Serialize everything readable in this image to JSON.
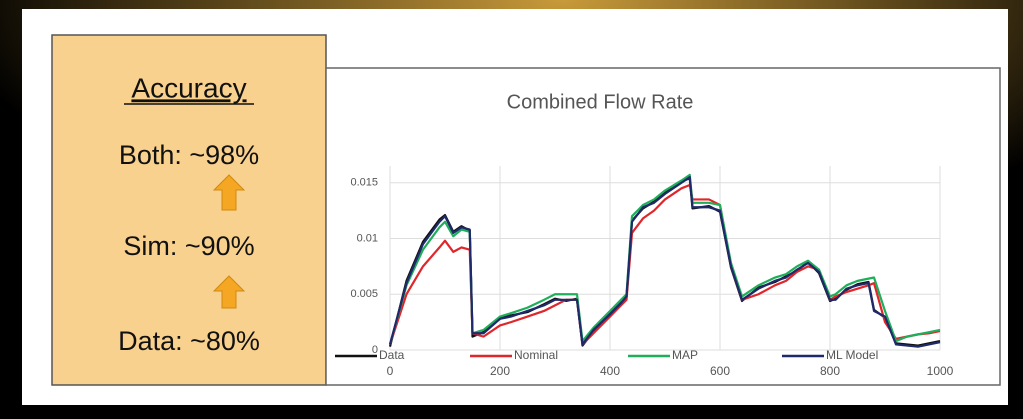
{
  "panel": {
    "heading": "Accuracy",
    "lines": [
      "Both: ~98%",
      "Sim: ~90%",
      "Data: ~80%"
    ]
  },
  "chart_data": {
    "type": "line",
    "title": "Combined Flow Rate",
    "x": [
      0,
      30,
      60,
      90,
      100,
      115,
      130,
      145,
      150,
      170,
      200,
      220,
      250,
      280,
      300,
      320,
      340,
      350,
      370,
      400,
      420,
      430,
      440,
      460,
      480,
      500,
      530,
      545,
      550,
      580,
      600,
      620,
      640,
      670,
      700,
      720,
      740,
      760,
      780,
      800,
      810,
      830,
      850,
      870,
      880,
      900,
      920,
      940,
      960,
      980,
      1000
    ],
    "series": [
      {
        "name": "Data",
        "color": "#111111",
        "values": [
          0.0003,
          0.0062,
          0.0097,
          0.0117,
          0.0121,
          0.0106,
          0.0111,
          0.0107,
          0.0012,
          0.0016,
          0.0029,
          0.0031,
          0.0034,
          0.0041,
          0.0046,
          0.0044,
          0.0046,
          0.0004,
          0.0017,
          0.0033,
          0.0043,
          0.0047,
          0.0116,
          0.0127,
          0.0133,
          0.0141,
          0.0151,
          0.0154,
          0.0127,
          0.0129,
          0.0124,
          0.0074,
          0.0044,
          0.0056,
          0.0061,
          0.0066,
          0.0071,
          0.0079,
          0.0069,
          0.0044,
          0.0046,
          0.0054,
          0.0059,
          0.0061,
          0.0036,
          0.0029,
          0.0006,
          0.0005,
          0.0004,
          0.0006,
          0.0008
        ]
      },
      {
        "name": "Nominal",
        "color": "#e0262b",
        "values": [
          0.0005,
          0.005,
          0.0075,
          0.0092,
          0.0098,
          0.0088,
          0.0092,
          0.009,
          0.0015,
          0.0012,
          0.0022,
          0.0025,
          0.003,
          0.0035,
          0.004,
          0.0045,
          0.0045,
          0.0005,
          0.0015,
          0.003,
          0.004,
          0.0045,
          0.0105,
          0.0118,
          0.0125,
          0.0135,
          0.0145,
          0.0148,
          0.0135,
          0.0135,
          0.013,
          0.0075,
          0.0045,
          0.005,
          0.0058,
          0.0062,
          0.007,
          0.0075,
          0.0072,
          0.0045,
          0.0048,
          0.0052,
          0.0055,
          0.0058,
          0.006,
          0.0025,
          0.001,
          0.0012,
          0.0014,
          0.0015,
          0.0017
        ]
      },
      {
        "name": "MAP",
        "color": "#1fae5a",
        "values": [
          0.0005,
          0.0058,
          0.009,
          0.011,
          0.0115,
          0.0102,
          0.0108,
          0.0106,
          0.0015,
          0.0018,
          0.003,
          0.0033,
          0.0038,
          0.0045,
          0.005,
          0.005,
          0.005,
          0.0008,
          0.002,
          0.0035,
          0.0045,
          0.005,
          0.012,
          0.013,
          0.0135,
          0.0143,
          0.0152,
          0.0157,
          0.0132,
          0.0132,
          0.013,
          0.0078,
          0.0048,
          0.0058,
          0.0065,
          0.0068,
          0.0075,
          0.008,
          0.0072,
          0.0048,
          0.005,
          0.0058,
          0.0062,
          0.0064,
          0.0065,
          0.0035,
          0.0008,
          0.0012,
          0.0014,
          0.0016,
          0.0018
        ]
      },
      {
        "name": "ML Model",
        "color": "#1f2a6b",
        "values": [
          0.0005,
          0.006,
          0.0095,
          0.0115,
          0.012,
          0.0105,
          0.011,
          0.0108,
          0.0015,
          0.0015,
          0.0028,
          0.003,
          0.0035,
          0.004,
          0.0045,
          0.0045,
          0.0045,
          0.0005,
          0.0018,
          0.0032,
          0.0042,
          0.0048,
          0.0115,
          0.0128,
          0.0132,
          0.014,
          0.015,
          0.0155,
          0.0128,
          0.0128,
          0.0125,
          0.0075,
          0.0045,
          0.0055,
          0.0062,
          0.0065,
          0.0072,
          0.0078,
          0.007,
          0.0045,
          0.0045,
          0.0055,
          0.0058,
          0.006,
          0.0035,
          0.003,
          0.0005,
          0.0004,
          0.0003,
          0.0005,
          0.0007
        ]
      }
    ],
    "xlim": [
      0,
      1000
    ],
    "xticks": [
      0,
      200,
      400,
      600,
      800,
      1000
    ],
    "ylim": [
      0,
      0.0165
    ],
    "yticks": [
      0,
      0.005,
      0.01,
      0.015
    ],
    "grid": true,
    "legend": "bottom"
  }
}
